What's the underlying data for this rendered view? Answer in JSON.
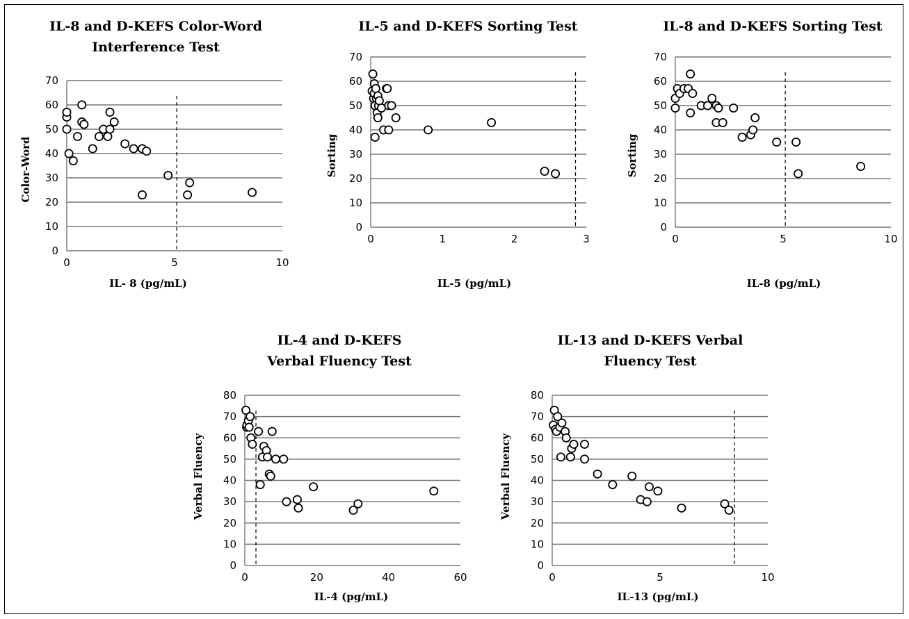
{
  "chart_data": [
    {
      "type": "scatter",
      "title_lines": [
        "IL-8 and D-KEFS Color-Word",
        "Interference Test"
      ],
      "xlabel": "IL- 8 (pg/mL)",
      "ylabel": "Color-Word",
      "xlim": [
        0,
        10
      ],
      "xticks": [
        0,
        5,
        10
      ],
      "ylim": [
        0,
        70
      ],
      "yticks": [
        0,
        10,
        20,
        30,
        40,
        50,
        60,
        70
      ],
      "grid": "horizontal",
      "cutoff_x": 5.1,
      "points": [
        [
          0,
          50
        ],
        [
          0,
          55
        ],
        [
          0,
          57
        ],
        [
          0.1,
          40
        ],
        [
          0.3,
          37
        ],
        [
          0.5,
          47
        ],
        [
          0.7,
          60
        ],
        [
          0.7,
          53
        ],
        [
          0.8,
          52
        ],
        [
          1.2,
          42
        ],
        [
          1.5,
          47
        ],
        [
          1.7,
          50
        ],
        [
          1.9,
          47
        ],
        [
          2.0,
          50
        ],
        [
          2.0,
          57
        ],
        [
          2.2,
          53
        ],
        [
          2.7,
          44
        ],
        [
          3.1,
          42
        ],
        [
          3.5,
          42
        ],
        [
          3.7,
          41
        ],
        [
          3.5,
          23
        ],
        [
          4.7,
          31
        ],
        [
          5.6,
          23
        ],
        [
          5.7,
          28
        ],
        [
          8.6,
          24
        ]
      ]
    },
    {
      "type": "scatter",
      "title_lines": [
        "IL-5 and D-KEFS Sorting Test"
      ],
      "xlabel": "IL-5 (pg/mL)",
      "ylabel": "Sorting",
      "xlim": [
        0,
        3
      ],
      "xticks": [
        0,
        1,
        2,
        3
      ],
      "ylim": [
        0,
        70
      ],
      "yticks": [
        0,
        10,
        20,
        30,
        40,
        50,
        60,
        70
      ],
      "grid": "horizontal",
      "cutoff_x": 2.85,
      "points": [
        [
          0.02,
          56
        ],
        [
          0.03,
          63
        ],
        [
          0.04,
          53
        ],
        [
          0.05,
          59
        ],
        [
          0.05,
          55
        ],
        [
          0.06,
          50
        ],
        [
          0.07,
          57
        ],
        [
          0.08,
          53
        ],
        [
          0.09,
          47
        ],
        [
          0.1,
          45
        ],
        [
          0.1,
          54
        ],
        [
          0.11,
          50
        ],
        [
          0.12,
          52
        ],
        [
          0.15,
          49
        ],
        [
          0.06,
          37
        ],
        [
          0.18,
          40
        ],
        [
          0.22,
          57
        ],
        [
          0.23,
          57
        ],
        [
          0.25,
          50
        ],
        [
          0.25,
          40
        ],
        [
          0.29,
          50
        ],
        [
          0.35,
          45
        ],
        [
          0.8,
          40
        ],
        [
          1.68,
          43
        ],
        [
          2.42,
          23
        ],
        [
          2.57,
          22
        ]
      ]
    },
    {
      "type": "scatter",
      "title_lines": [
        "IL-8 and D-KEFS Sorting Test"
      ],
      "xlabel": "IL-8 (pg/mL)",
      "ylabel": "Sorting",
      "xlim": [
        0,
        10
      ],
      "xticks": [
        0,
        5,
        10
      ],
      "ylim": [
        0,
        70
      ],
      "yticks": [
        0,
        10,
        20,
        30,
        40,
        50,
        60,
        70
      ],
      "grid": "horizontal",
      "cutoff_x": 5.1,
      "points": [
        [
          0,
          49
        ],
        [
          0,
          53
        ],
        [
          0.1,
          57
        ],
        [
          0.2,
          55
        ],
        [
          0.4,
          57
        ],
        [
          0.6,
          57
        ],
        [
          0.7,
          47
        ],
        [
          0.7,
          63
        ],
        [
          0.8,
          55
        ],
        [
          1.2,
          50
        ],
        [
          1.5,
          50
        ],
        [
          1.7,
          53
        ],
        [
          1.9,
          50
        ],
        [
          1.9,
          43
        ],
        [
          2.0,
          49
        ],
        [
          2.2,
          43
        ],
        [
          2.7,
          49
        ],
        [
          3.1,
          37
        ],
        [
          3.5,
          38
        ],
        [
          3.6,
          40
        ],
        [
          3.7,
          45
        ],
        [
          4.7,
          35
        ],
        [
          5.6,
          35
        ],
        [
          5.7,
          22
        ],
        [
          8.6,
          25
        ]
      ]
    },
    {
      "type": "scatter",
      "title_lines": [
        "IL-4 and D-KEFS",
        "Verbal Fluency Test"
      ],
      "xlabel": "IL-4 (pg/mL)",
      "ylabel": "Verbal Fluency",
      "xlim": [
        0,
        60
      ],
      "xticks": [
        0,
        20,
        40,
        60
      ],
      "ylim": [
        0,
        80
      ],
      "yticks": [
        0,
        10,
        20,
        30,
        40,
        50,
        60,
        70,
        80
      ],
      "grid": "horizontal",
      "cutoff_x": 3.1,
      "points": [
        [
          0.3,
          73
        ],
        [
          0.5,
          65
        ],
        [
          0.6,
          66
        ],
        [
          1.0,
          68
        ],
        [
          1.2,
          65
        ],
        [
          1.5,
          70
        ],
        [
          1.7,
          60
        ],
        [
          2.1,
          57
        ],
        [
          3.8,
          63
        ],
        [
          4.3,
          38
        ],
        [
          4.9,
          51
        ],
        [
          5.3,
          56
        ],
        [
          6.0,
          54
        ],
        [
          6.3,
          51
        ],
        [
          6.8,
          43
        ],
        [
          7.2,
          42
        ],
        [
          7.6,
          63
        ],
        [
          8.6,
          50
        ],
        [
          10.8,
          50
        ],
        [
          11.6,
          30
        ],
        [
          14.6,
          31
        ],
        [
          14.9,
          27
        ],
        [
          19.1,
          37
        ],
        [
          30.2,
          26
        ],
        [
          31.5,
          29
        ],
        [
          52.6,
          35
        ]
      ]
    },
    {
      "type": "scatter",
      "title_lines": [
        "IL-13 and D-KEFS Verbal",
        "Fluency Test"
      ],
      "xlabel": "IL-13 (pg/mL)",
      "ylabel": "Verbal Fluency",
      "xlim": [
        0,
        10
      ],
      "xticks": [
        0,
        5,
        10
      ],
      "ylim": [
        0,
        80
      ],
      "yticks": [
        0,
        10,
        20,
        30,
        40,
        50,
        60,
        70,
        80
      ],
      "grid": "horizontal",
      "cutoff_x": 8.45,
      "points": [
        [
          0.05,
          66
        ],
        [
          0.1,
          73
        ],
        [
          0.15,
          64
        ],
        [
          0.2,
          63
        ],
        [
          0.25,
          70
        ],
        [
          0.35,
          65
        ],
        [
          0.4,
          51
        ],
        [
          0.45,
          67
        ],
        [
          0.6,
          63
        ],
        [
          0.65,
          60
        ],
        [
          0.85,
          51
        ],
        [
          0.9,
          55
        ],
        [
          1.0,
          57
        ],
        [
          1.5,
          57
        ],
        [
          1.5,
          50
        ],
        [
          2.1,
          43
        ],
        [
          2.8,
          38
        ],
        [
          3.7,
          42
        ],
        [
          4.1,
          31
        ],
        [
          4.4,
          30
        ],
        [
          4.5,
          37
        ],
        [
          4.9,
          35
        ],
        [
          6.0,
          27
        ],
        [
          8.0,
          29
        ],
        [
          8.2,
          26
        ]
      ]
    }
  ]
}
